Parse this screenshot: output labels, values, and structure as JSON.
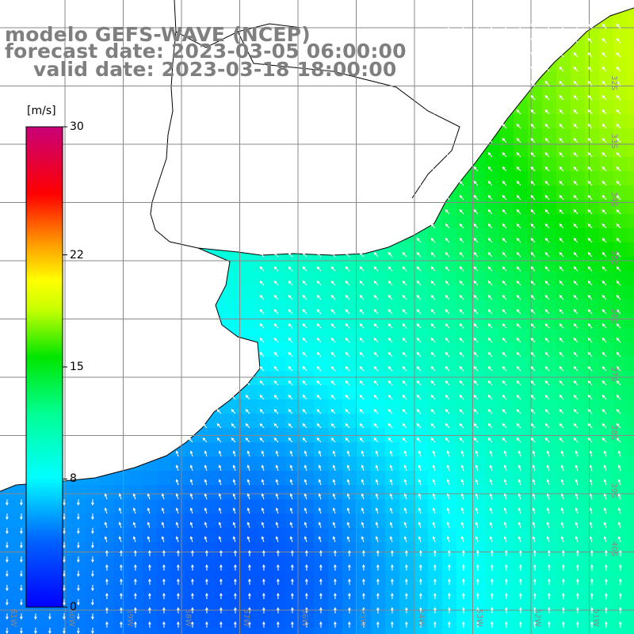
{
  "title": {
    "line1": "modelo GEFS-WAVE (NCEP)",
    "line2": "forecast date: 2023-03-05 06:00:00",
    "line3": "valid date: 2023-03-18 18:00:00"
  },
  "colorbar": {
    "unit": "[m/s]",
    "ticks": [
      {
        "label": "30",
        "value": 30
      },
      {
        "label": "22",
        "value": 22
      },
      {
        "label": "15",
        "value": 15
      },
      {
        "label": "8",
        "value": 8
      },
      {
        "label": "0",
        "value": 0
      }
    ],
    "range": [
      0,
      30
    ],
    "colors": [
      "#0000ff",
      "#00c8ff",
      "#00ffff",
      "#00ff00",
      "#ffff00",
      "#ff8000",
      "#ff0000",
      "#c00080"
    ]
  },
  "map": {
    "land_color": "#ffffff",
    "coast_color": "#000000",
    "grid_color": "#888888",
    "arrow_color": "#ffffff",
    "lon_labels": [
      "61W",
      "60W",
      "59W",
      "58W",
      "57W",
      "56W",
      "55W",
      "54W",
      "53W",
      "52W",
      "51W"
    ],
    "lat_labels": [
      "32S",
      "33S",
      "34S",
      "35S",
      "36S",
      "37S",
      "38S",
      "39S",
      "40S"
    ]
  }
}
